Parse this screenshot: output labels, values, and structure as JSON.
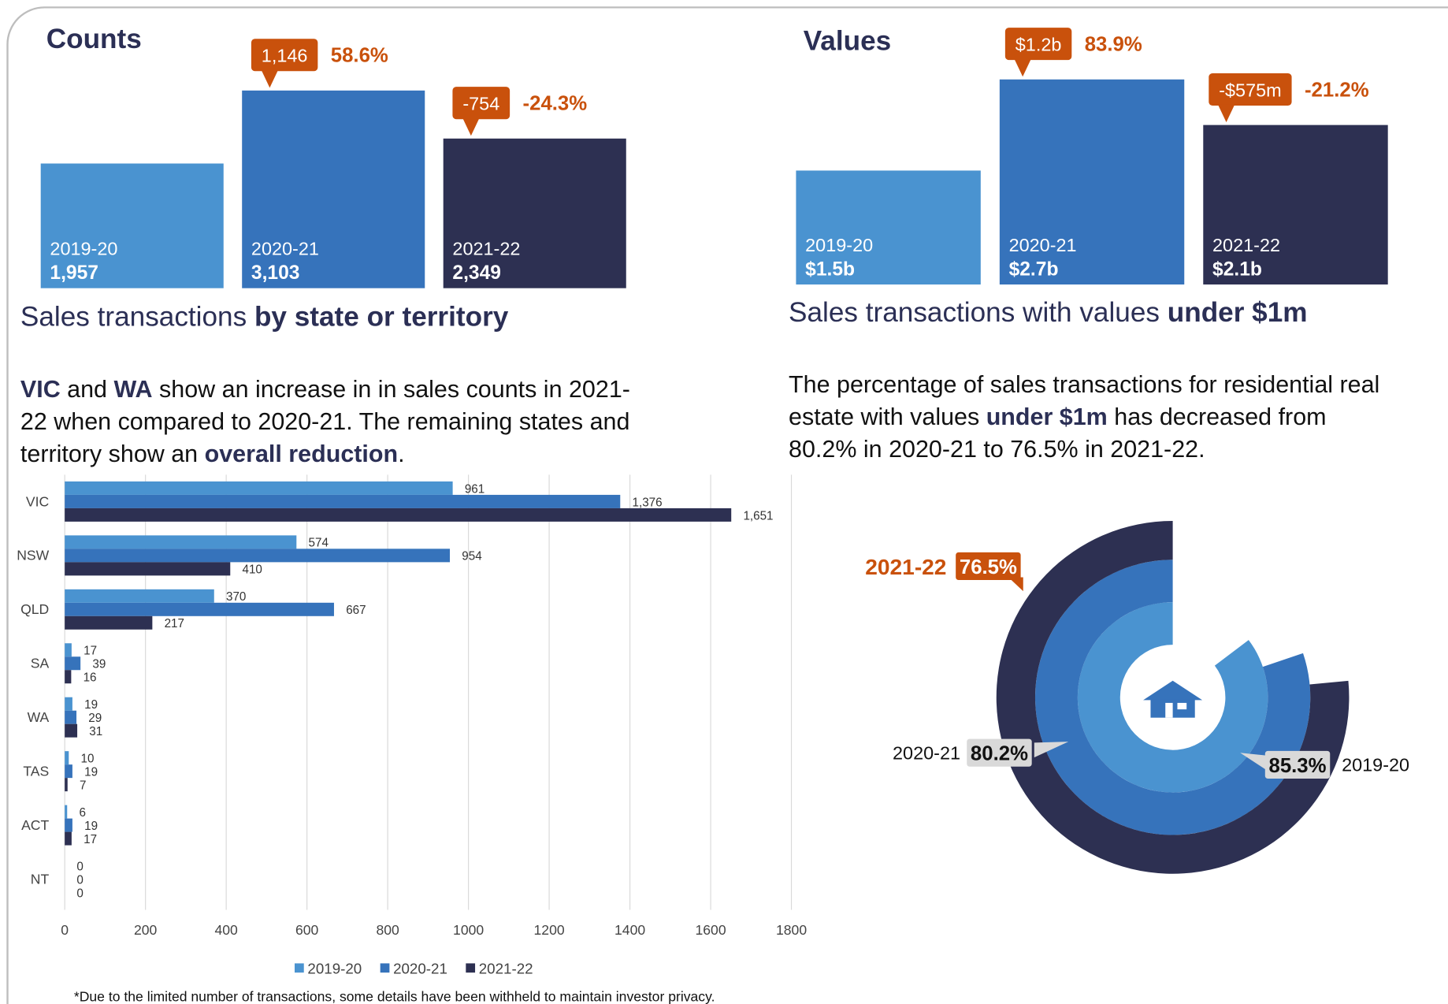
{
  "chart_data": [
    {
      "type": "bar",
      "title": "Counts",
      "categories": [
        "2019-20",
        "2020-21",
        "2021-22"
      ],
      "values": [
        1957,
        3103,
        2349
      ],
      "value_labels": [
        "1,957",
        "3,103",
        "2,349"
      ],
      "colors": [
        "#4a93d0",
        "#3673bb",
        "#2d3052"
      ],
      "changes": [
        null,
        1146,
        -754
      ],
      "change_labels": [
        null,
        "1,146",
        "-754"
      ],
      "change_percents": [
        null,
        58.6,
        -24.3
      ],
      "change_percent_labels": [
        null,
        "58.6%",
        "-24.3%"
      ],
      "callout_color": "#c9510c"
    },
    {
      "type": "bar",
      "title": "Values",
      "categories": [
        "2019-20",
        "2020-21",
        "2021-22"
      ],
      "values": [
        1.5,
        2.7,
        2.1
      ],
      "value_labels": [
        "$1.5b",
        "$2.7b",
        "$2.1b"
      ],
      "colors": [
        "#4a93d0",
        "#3673bb",
        "#2d3052"
      ],
      "changes": [
        null,
        1.2,
        -0.575
      ],
      "change_labels": [
        null,
        "$1.2b",
        "-$575m"
      ],
      "change_percents": [
        null,
        83.9,
        -21.2
      ],
      "change_percent_labels": [
        null,
        "83.9%",
        "-21.2%"
      ],
      "callout_color": "#c9510c"
    },
    {
      "type": "hbar",
      "categories": [
        "VIC",
        "NSW",
        "QLD",
        "SA",
        "WA",
        "TAS",
        "ACT",
        "NT"
      ],
      "series": [
        {
          "name": "2019-20",
          "color": "#4a93d0",
          "values": [
            961,
            574,
            370,
            17,
            19,
            10,
            6,
            0
          ]
        },
        {
          "name": "2020-21",
          "color": "#3673bb",
          "values": [
            1376,
            954,
            667,
            39,
            29,
            19,
            19,
            0
          ],
          "value_labels": [
            "1,376",
            "954",
            "667",
            "39",
            "29",
            "19",
            "19",
            "0"
          ]
        },
        {
          "name": "2021-22",
          "color": "#2d3052",
          "values": [
            1651,
            410,
            217,
            16,
            31,
            7,
            17,
            0
          ],
          "value_labels": [
            "1,651",
            "410",
            "217",
            "16",
            "31",
            "7",
            "17",
            "0"
          ]
        }
      ],
      "xlim": [
        0,
        1800
      ],
      "xticks": [
        0,
        200,
        400,
        600,
        800,
        1000,
        1200,
        1400,
        1600,
        1800
      ],
      "grid": true,
      "legend": "bottom",
      "note": "*Due to the limited number of transactions, some details have been withheld to maintain investor privacy."
    },
    {
      "type": "radial_bar",
      "categories": [
        "2019-20",
        "2020-21",
        "2021-22"
      ],
      "values": [
        85.3,
        80.2,
        76.5
      ],
      "value_labels": [
        "85.3%",
        "80.2%",
        "76.5%"
      ],
      "colors": [
        "#4a93d0",
        "#3673bb",
        "#2d3052"
      ],
      "label_colors": [
        "#d9d9d9",
        "#d9d9d9",
        "#c9510c"
      ]
    }
  ],
  "sections": [
    {
      "heading": [
        {
          "text": "Sales transactions ",
          "bold": false
        },
        {
          "text": "by state or territory",
          "bold": true
        }
      ],
      "paragraph": [
        [
          {
            "text": "VIC",
            "bold": true
          },
          {
            "text": " and ",
            "bold": false
          },
          {
            "text": "WA",
            "bold": true
          },
          {
            "text": " show an increase in in sales counts in 2021-",
            "bold": false
          }
        ],
        [
          {
            "text": "22 when compared to 2020-21. The remaining states and",
            "bold": false
          }
        ],
        [
          {
            "text": "territory show an ",
            "bold": false
          },
          {
            "text": "overall reduction",
            "bold": true
          },
          {
            "text": ".",
            "bold": false
          }
        ]
      ]
    },
    {
      "heading": [
        {
          "text": "Sales transactions with values ",
          "bold": false
        },
        {
          "text": "under $1m",
          "bold": true
        }
      ],
      "paragraph": [
        [
          {
            "text": "The percentage of sales transactions for residential real",
            "bold": false
          }
        ],
        [
          {
            "text": "estate with values ",
            "bold": false
          },
          {
            "text": "under $1m",
            "bold": true
          },
          {
            "text": " has decreased from",
            "bold": false
          }
        ],
        [
          {
            "text": "80.2% in 2020-21 to 76.5% in 2021-22.",
            "bold": false
          }
        ]
      ]
    }
  ]
}
